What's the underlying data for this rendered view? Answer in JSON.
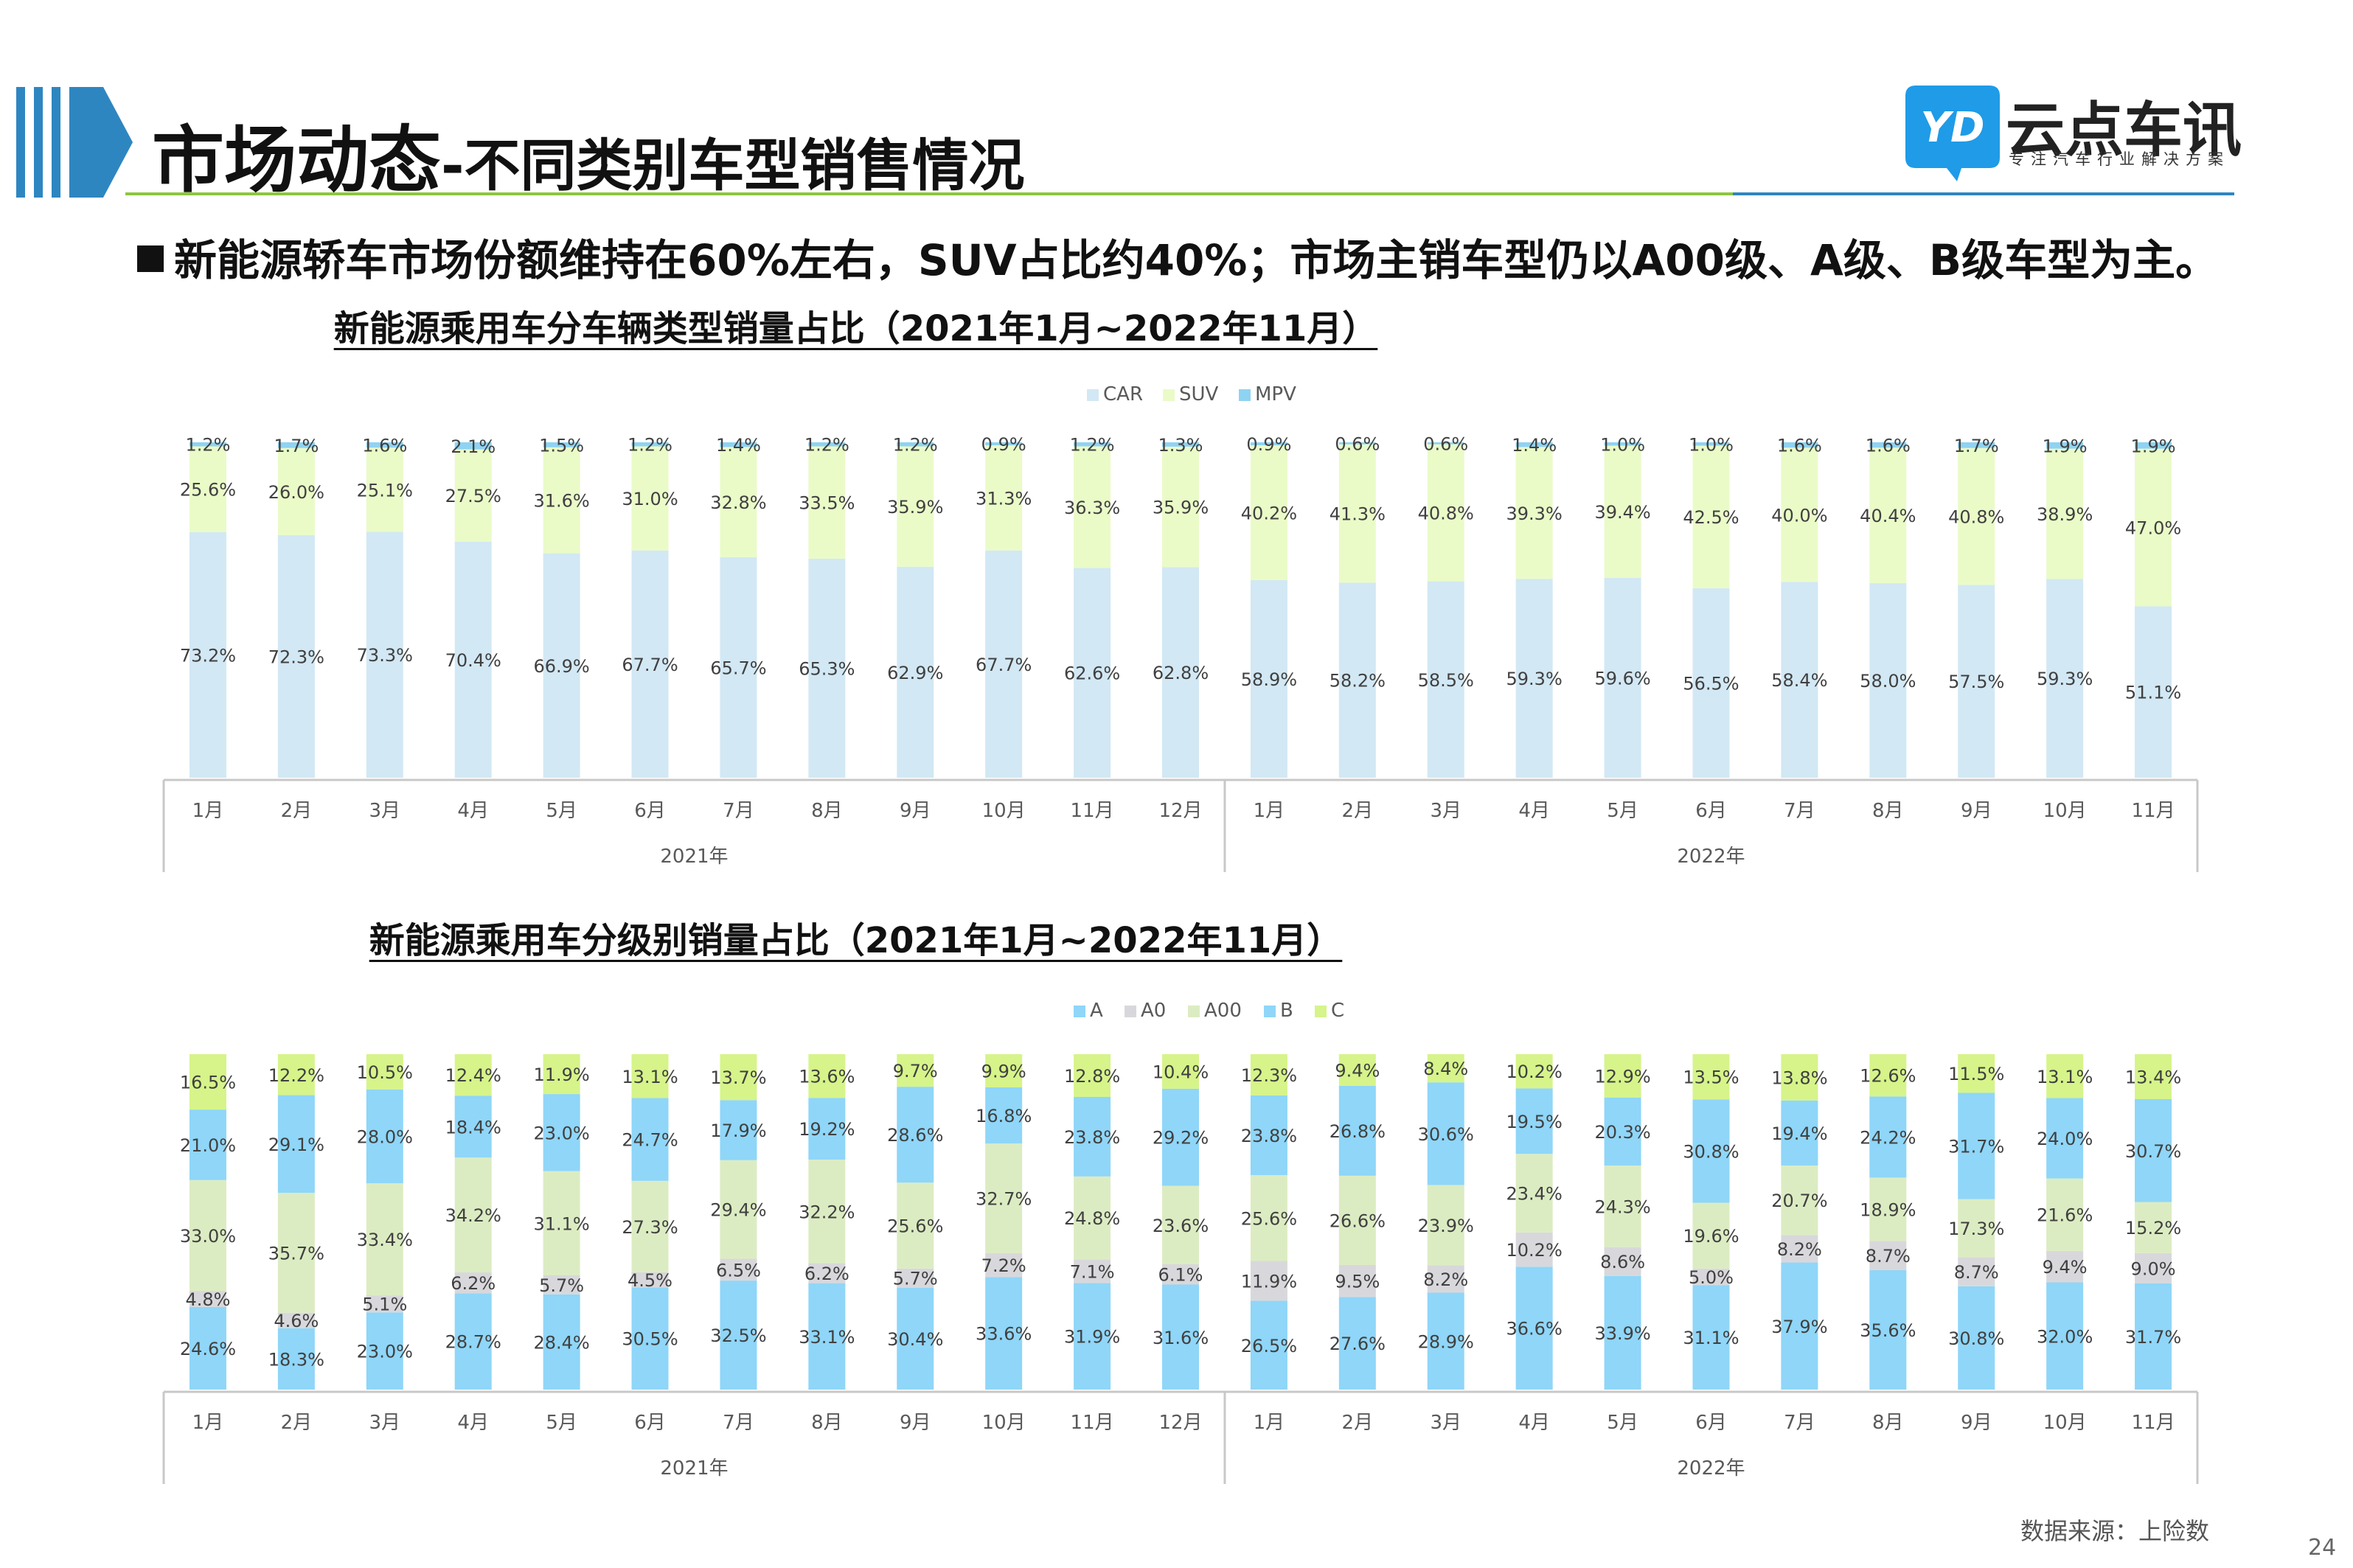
{
  "header": {
    "title_main": "市场动态",
    "title_sub": "-不同类别车型销售情况",
    "logo_mark": "YD",
    "logo_name": "云点车讯",
    "logo_tagline": "专注汽车行业解决方案",
    "accent_color": "#2e86c1",
    "rule_color": "#8dc63f"
  },
  "headline": {
    "text": "新能源轿车市场份额维持在60%左右，SUV占比约40%；市场主销车型仍以A00级、A级、B级车型为主。"
  },
  "footer": {
    "source": "数据来源：上险数",
    "page_number": "24"
  },
  "chart_data": [
    {
      "type": "bar",
      "stacked": "percent",
      "title": "新能源乘用车分车辆类型销量占比（2021年1月~2022年11月）",
      "categories": [
        "1月",
        "2月",
        "3月",
        "4月",
        "5月",
        "6月",
        "7月",
        "8月",
        "9月",
        "10月",
        "11月",
        "12月",
        "1月",
        "2月",
        "3月",
        "4月",
        "5月",
        "6月",
        "7月",
        "8月",
        "9月",
        "10月",
        "11月"
      ],
      "groups": [
        {
          "name": "2021年",
          "count": 12
        },
        {
          "name": "2022年",
          "count": 11
        }
      ],
      "legend": {
        "position": "top-center",
        "order": [
          "CAR",
          "SUV",
          "MPV"
        ]
      },
      "series": [
        {
          "name": "CAR",
          "color": "#d2e8f4",
          "values": [
            73.2,
            72.3,
            73.3,
            70.4,
            66.9,
            67.7,
            65.7,
            65.3,
            62.9,
            67.7,
            62.6,
            62.8,
            58.9,
            58.2,
            58.5,
            59.3,
            59.6,
            56.5,
            58.4,
            58.0,
            57.5,
            59.3,
            51.1
          ]
        },
        {
          "name": "SUV",
          "color": "#eafbc8",
          "values": [
            25.6,
            26.0,
            25.1,
            27.5,
            31.6,
            31.0,
            32.8,
            33.5,
            35.9,
            31.3,
            36.3,
            35.9,
            40.2,
            41.3,
            40.8,
            39.3,
            39.4,
            42.5,
            40.0,
            40.4,
            40.8,
            38.9,
            47.0
          ]
        },
        {
          "name": "MPV",
          "color": "#8fd3f2",
          "values": [
            1.2,
            1.7,
            1.6,
            2.1,
            1.5,
            1.2,
            1.4,
            1.2,
            1.2,
            0.9,
            1.2,
            1.3,
            0.9,
            0.6,
            0.6,
            1.4,
            1.0,
            1.0,
            1.6,
            1.6,
            1.7,
            1.9,
            1.9
          ]
        }
      ],
      "ylim": [
        0,
        100
      ]
    },
    {
      "type": "bar",
      "stacked": "percent",
      "title": "新能源乘用车分级别销量占比（2021年1月~2022年11月）",
      "categories": [
        "1月",
        "2月",
        "3月",
        "4月",
        "5月",
        "6月",
        "7月",
        "8月",
        "9月",
        "10月",
        "11月",
        "12月",
        "1月",
        "2月",
        "3月",
        "4月",
        "5月",
        "6月",
        "7月",
        "8月",
        "9月",
        "10月",
        "11月"
      ],
      "groups": [
        {
          "name": "2021年",
          "count": 12
        },
        {
          "name": "2022年",
          "count": 11
        }
      ],
      "legend": {
        "position": "top-center",
        "order": [
          "A",
          "A0",
          "A00",
          "B",
          "C"
        ]
      },
      "series": [
        {
          "name": "A",
          "color": "#8fd6f8",
          "values": [
            24.6,
            18.3,
            23.0,
            28.7,
            28.4,
            30.5,
            32.5,
            33.1,
            30.4,
            33.6,
            31.9,
            31.6,
            26.5,
            27.6,
            28.9,
            36.6,
            33.9,
            31.1,
            37.9,
            35.6,
            30.8,
            32.0,
            31.7
          ]
        },
        {
          "name": "A0",
          "color": "#d8d8dc",
          "values": [
            4.8,
            4.6,
            5.1,
            6.2,
            5.7,
            4.5,
            6.5,
            6.2,
            5.7,
            7.2,
            7.1,
            6.1,
            11.9,
            9.5,
            8.2,
            10.2,
            8.6,
            5.0,
            8.2,
            8.7,
            8.7,
            9.4,
            9.0
          ]
        },
        {
          "name": "A00",
          "color": "#dcecc2",
          "values": [
            33.0,
            35.7,
            33.4,
            34.2,
            31.1,
            27.3,
            29.4,
            32.2,
            25.6,
            32.7,
            24.8,
            23.6,
            25.6,
            26.6,
            23.9,
            23.4,
            24.3,
            19.6,
            20.7,
            18.9,
            17.3,
            21.6,
            15.2
          ]
        },
        {
          "name": "B",
          "color": "#8fd6f8",
          "values": [
            21.0,
            29.1,
            28.0,
            18.4,
            23.0,
            24.7,
            17.9,
            19.2,
            28.6,
            16.8,
            23.8,
            29.2,
            23.8,
            26.8,
            30.6,
            19.5,
            20.3,
            30.8,
            19.4,
            24.2,
            31.7,
            24.0,
            30.7
          ]
        },
        {
          "name": "C",
          "color": "#d6f48a",
          "values": [
            16.5,
            12.2,
            10.5,
            12.4,
            11.9,
            13.1,
            13.7,
            13.6,
            9.7,
            9.9,
            12.8,
            10.4,
            12.3,
            9.4,
            8.4,
            10.2,
            12.9,
            13.5,
            13.8,
            12.6,
            11.5,
            13.1,
            13.4
          ]
        }
      ],
      "ylim": [
        0,
        100
      ]
    }
  ]
}
